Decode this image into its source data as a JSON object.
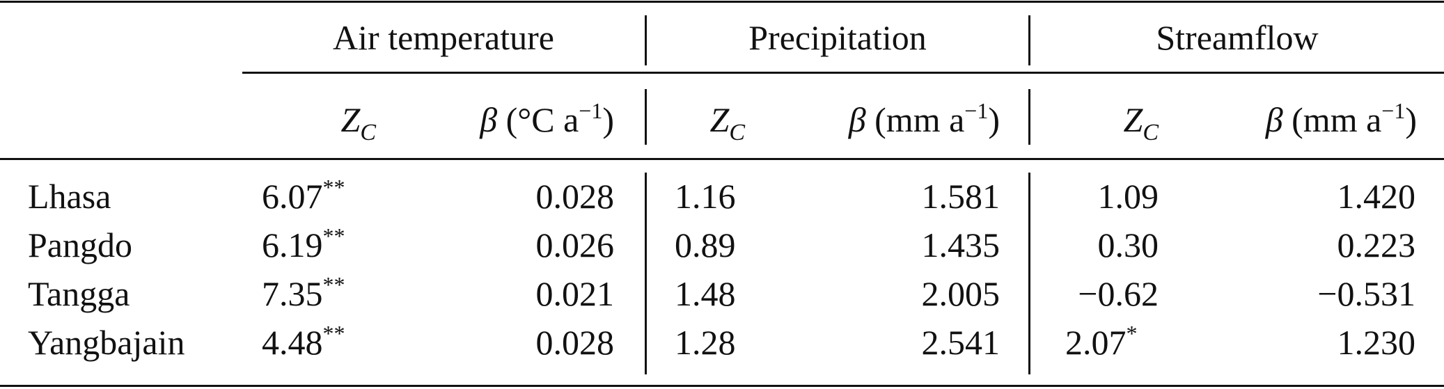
{
  "groups": {
    "air": "Air temperature",
    "precip": "Precipitation",
    "flow": "Streamflow"
  },
  "subheaders": {
    "z_symbol": "Z",
    "z_subscript": "C",
    "beta_symbol": "β",
    "air_unit_prefix": "(°C a",
    "mm_unit_prefix": "(mm a",
    "unit_exponent": "−1",
    "unit_suffix": ")"
  },
  "rows": [
    {
      "station": "Lhasa",
      "air_z": "6.07",
      "air_z_sig": "**",
      "air_beta": "0.028",
      "pr_z": "1.16",
      "pr_z_sig": "",
      "pr_beta": "1.581",
      "sf_z": "1.09",
      "sf_z_sig": "",
      "sf_beta": "1.420"
    },
    {
      "station": "Pangdo",
      "air_z": "6.19",
      "air_z_sig": "**",
      "air_beta": "0.026",
      "pr_z": "0.89",
      "pr_z_sig": "",
      "pr_beta": "1.435",
      "sf_z": "0.30",
      "sf_z_sig": "",
      "sf_beta": "0.223"
    },
    {
      "station": "Tangga",
      "air_z": "7.35",
      "air_z_sig": "**",
      "air_beta": "0.021",
      "pr_z": "1.48",
      "pr_z_sig": "",
      "pr_beta": "2.005",
      "sf_z": "−0.62",
      "sf_z_sig": "",
      "sf_beta": "−0.531"
    },
    {
      "station": "Yangbajain",
      "air_z": "4.48",
      "air_z_sig": "**",
      "air_beta": "0.028",
      "pr_z": "1.28",
      "pr_z_sig": "",
      "pr_beta": "2.541",
      "sf_z": "2.07",
      "sf_z_sig": "*",
      "sf_beta": "1.230"
    }
  ]
}
